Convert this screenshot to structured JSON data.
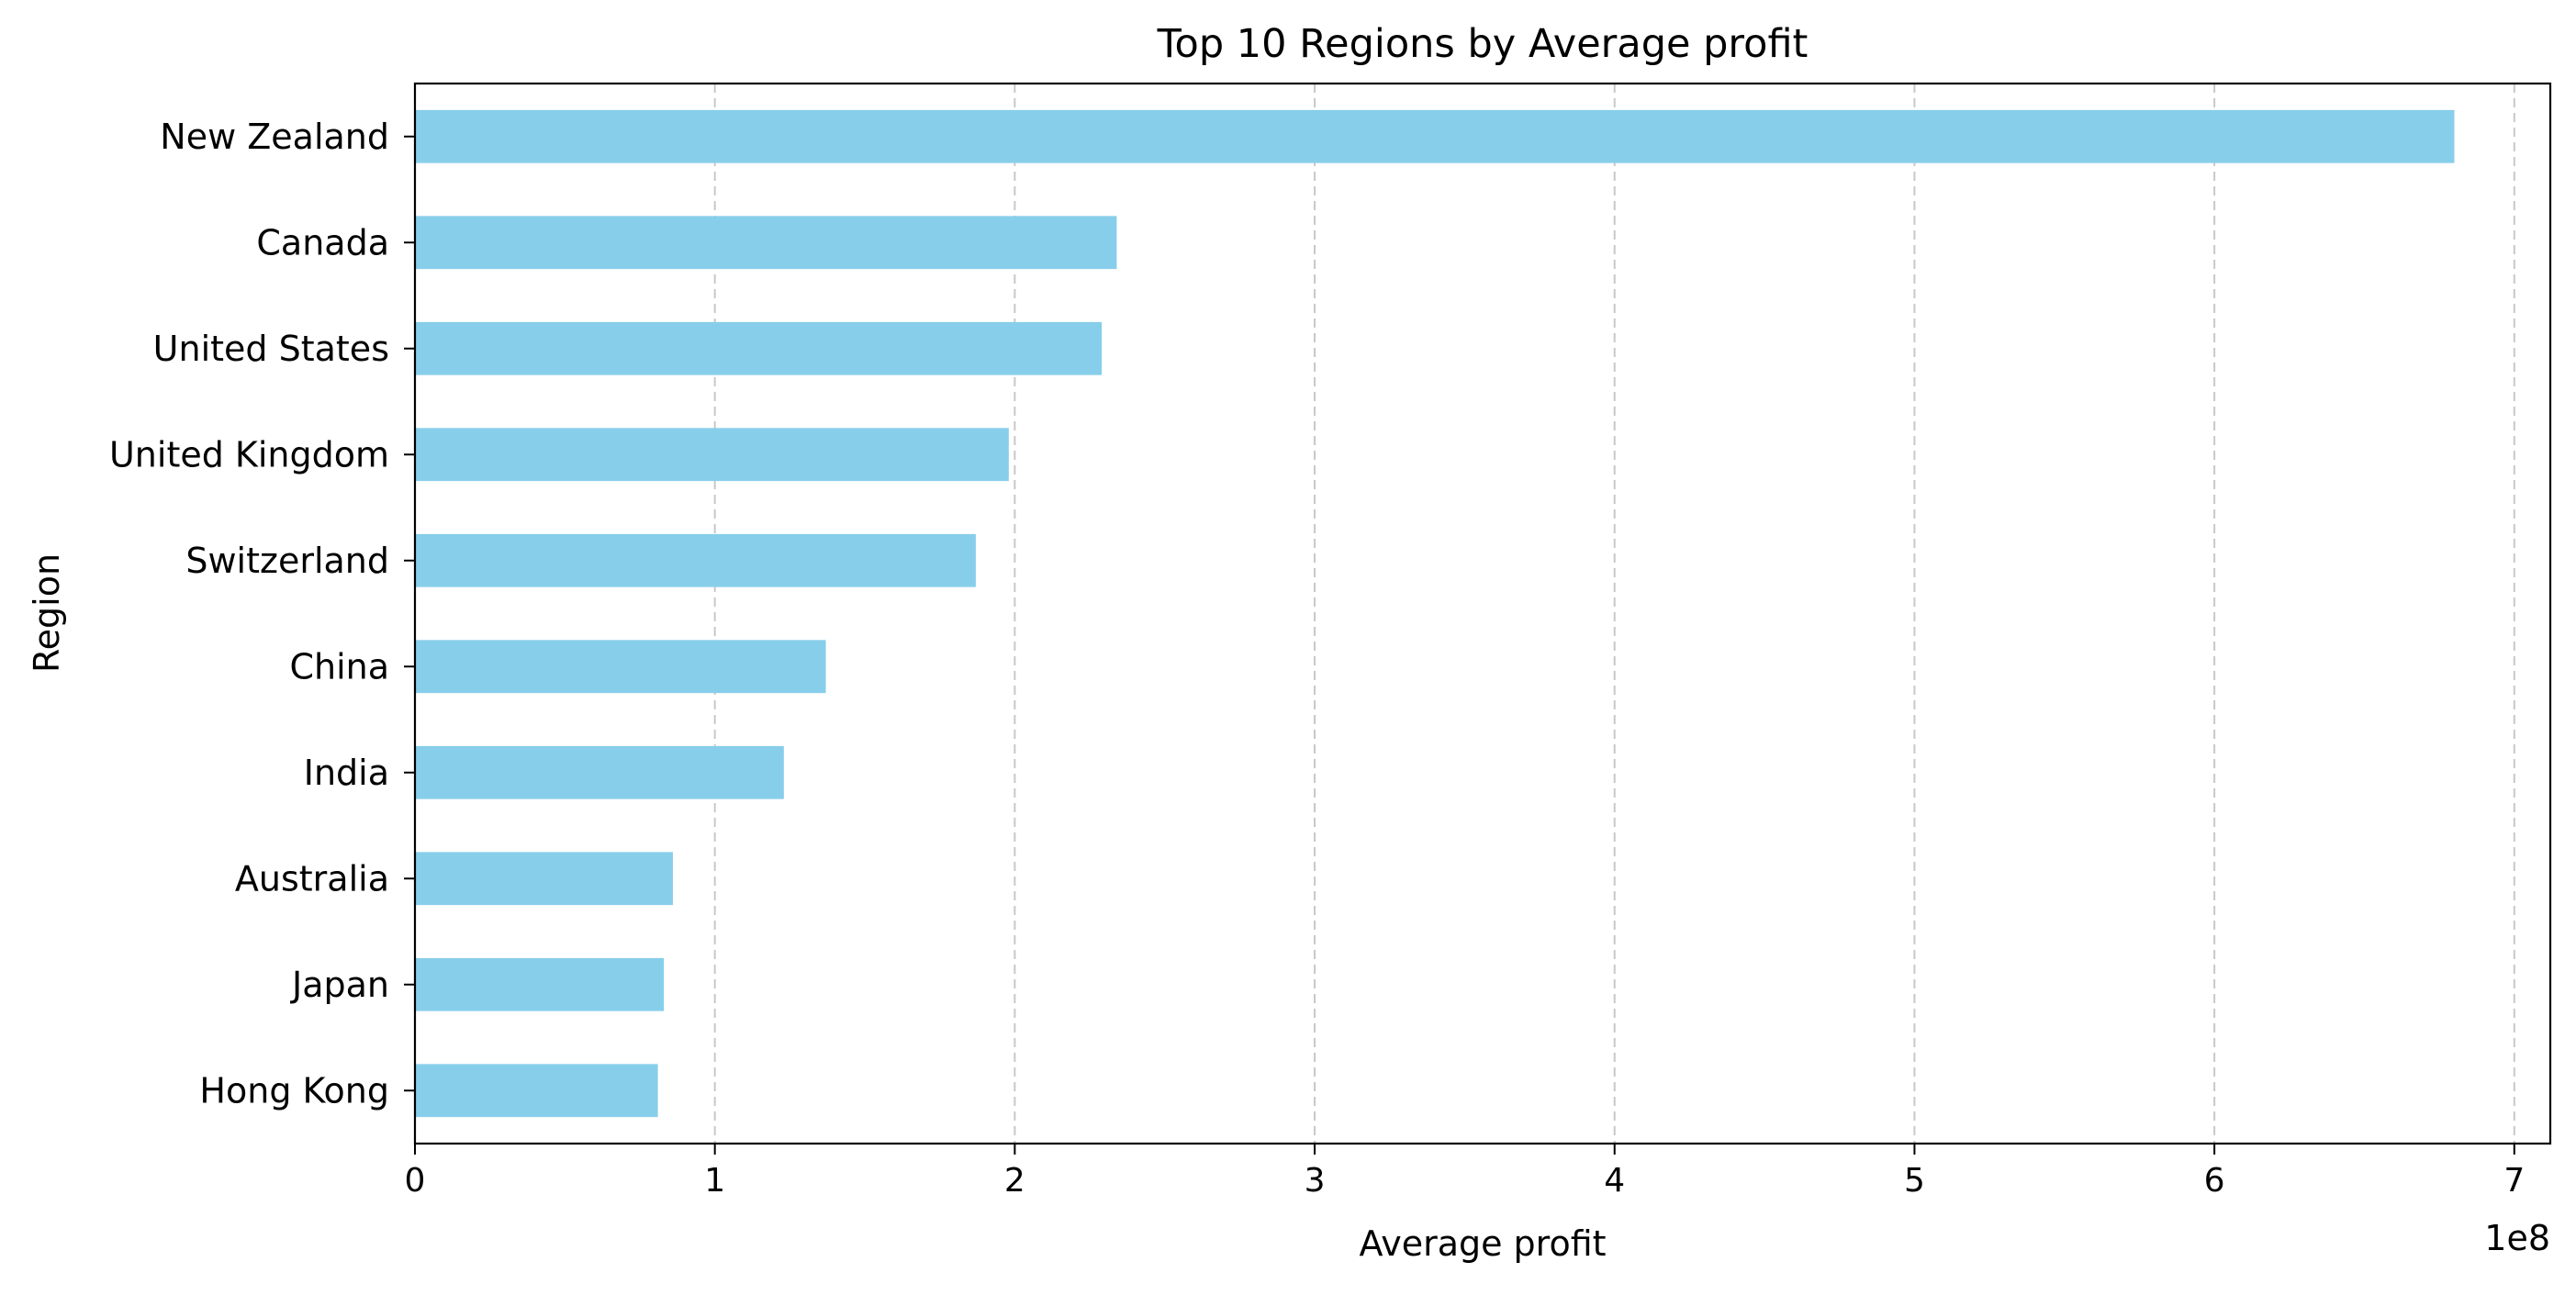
{
  "chart_data": {
    "type": "bar",
    "orientation": "horizontal",
    "title": "Top 10 Regions by Average profit",
    "xlabel": "Average profit",
    "ylabel": "Region",
    "offset_label": "1e8",
    "categories": [
      "New Zealand",
      "Canada",
      "United States",
      "United Kingdom",
      "Switzerland",
      "China",
      "India",
      "Australia",
      "Japan",
      "Hong Kong"
    ],
    "values": [
      680000000,
      234000000,
      229000000,
      198000000,
      187000000,
      137000000,
      123000000,
      86000000,
      83000000,
      81000000
    ],
    "xlim": [
      0,
      712000000
    ],
    "xticks": [
      0,
      100000000,
      200000000,
      300000000,
      400000000,
      500000000,
      600000000,
      700000000
    ],
    "xtick_labels": [
      "0",
      "1",
      "2",
      "3",
      "4",
      "5",
      "6",
      "7"
    ],
    "grid": "x-dashed",
    "legend": "none",
    "bar_color": "#87CEEB"
  }
}
